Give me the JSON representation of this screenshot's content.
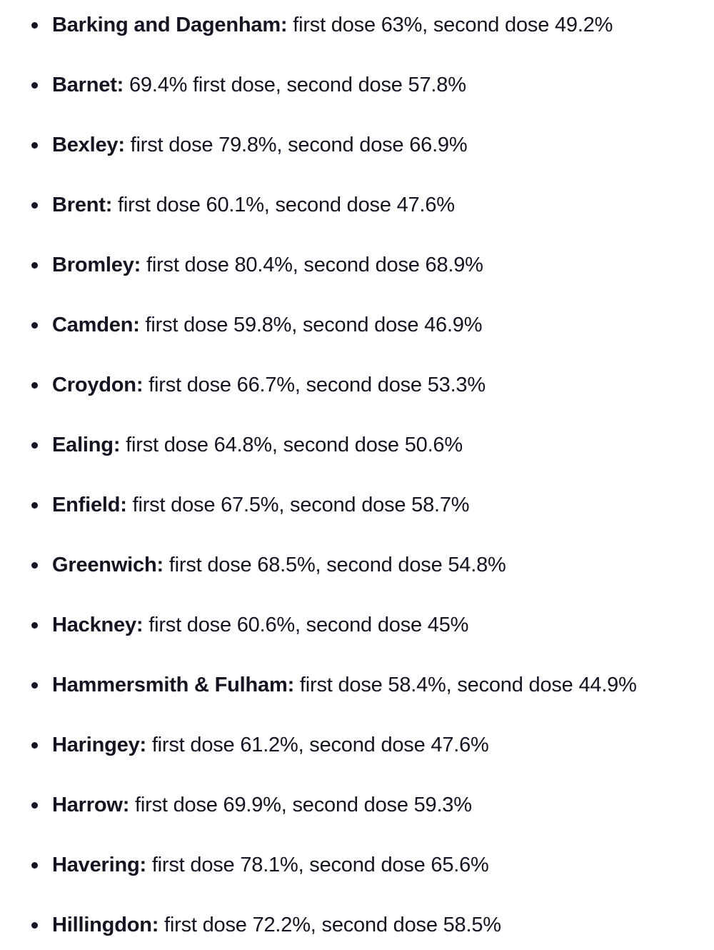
{
  "page": {
    "background_color": "#ffffff",
    "text_color": "#141423"
  },
  "list": {
    "description": "London boroughs vaccination first and second dose percentages",
    "items": [
      {
        "name": "Barking and Dagenham:",
        "detail": " first dose 63%, second dose 49.2%"
      },
      {
        "name": "Barnet:",
        "detail": " 69.4% first dose, second dose 57.8%"
      },
      {
        "name": "Bexley:",
        "detail": " first dose 79.8%, second dose 66.9%"
      },
      {
        "name": "Brent:",
        "detail": " first dose 60.1%, second dose 47.6%"
      },
      {
        "name": "Bromley:",
        "detail": " first dose 80.4%, second dose 68.9%"
      },
      {
        "name": "Camden:",
        "detail": " first dose 59.8%, second dose 46.9%"
      },
      {
        "name": "Croydon:",
        "detail": " first dose 66.7%, second dose 53.3%"
      },
      {
        "name": "Ealing:",
        "detail": " first dose 64.8%, second dose 50.6%"
      },
      {
        "name": "Enfield:",
        "detail": " first dose 67.5%, second dose 58.7%"
      },
      {
        "name": "Greenwich:",
        "detail": " first dose 68.5%, second dose 54.8%"
      },
      {
        "name": "Hackney:",
        "detail": " first dose 60.6%, second dose 45%"
      },
      {
        "name": "Hammersmith & Fulham:",
        "detail": " first dose 58.4%, second dose 44.9%"
      },
      {
        "name": "Haringey:",
        "detail": " first dose 61.2%, second dose 47.6%"
      },
      {
        "name": "Harrow:",
        "detail": " first dose 69.9%, second dose 59.3%"
      },
      {
        "name": "Havering:",
        "detail": " first dose 78.1%, second dose 65.6%"
      },
      {
        "name": "Hillingdon:",
        "detail": " first dose 72.2%, second dose 58.5%"
      }
    ]
  }
}
